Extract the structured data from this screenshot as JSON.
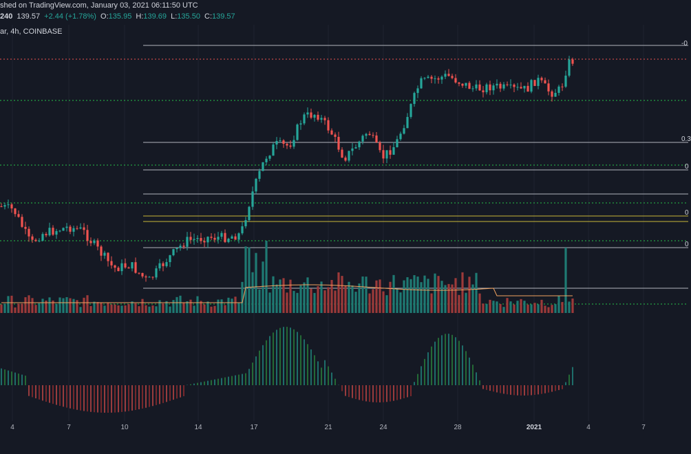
{
  "header": {
    "published": "shed on TradingView.com, January 03, 2021 06:11:50 UTC",
    "symbol": "240",
    "last": "139.57",
    "change": "+2.44 (+1.78%)",
    "o_label": "O:",
    "o_value": "135.95",
    "h_label": "H:",
    "h_value": "139.69",
    "l_label": "L:",
    "l_value": "135.50",
    "c_label": "C:",
    "c_value": "139.57"
  },
  "subheader": "ar, 4h, COINBASE",
  "fib_labels": [
    "-0",
    "0.3",
    "0",
    "0",
    "0"
  ],
  "x_axis": {
    "labels": [
      "4",
      "7",
      "10",
      "14",
      "17",
      "21",
      "24",
      "28",
      "2021",
      "4",
      "7"
    ]
  },
  "colors": {
    "background": "#151924",
    "up": "#26a69a",
    "down": "#ef5350",
    "red_dotted": "#ef5350",
    "green_dotted": "#26c44a",
    "fib_line": "#b2b5be",
    "fib_yellow": "#c9b838",
    "volume_ma": "#f4a460"
  },
  "chart_data": {
    "type": "candlestick",
    "title": "",
    "timeframe": "4h",
    "exchange": "COINBASE",
    "x_tick_labels": [
      "4",
      "7",
      "10",
      "14",
      "17",
      "21",
      "24",
      "28",
      "2021",
      "4",
      "7"
    ],
    "last_candle": {
      "open": 135.95,
      "high": 139.69,
      "low": 135.5,
      "close": 139.57
    },
    "change": 2.44,
    "change_pct": 1.78,
    "horizontal_levels": [
      "red dotted (top)",
      "green dotted x6",
      "white fib lines x7",
      "yellow lines x2"
    ],
    "panes": [
      "price",
      "volume",
      "oscillator histogram"
    ]
  }
}
